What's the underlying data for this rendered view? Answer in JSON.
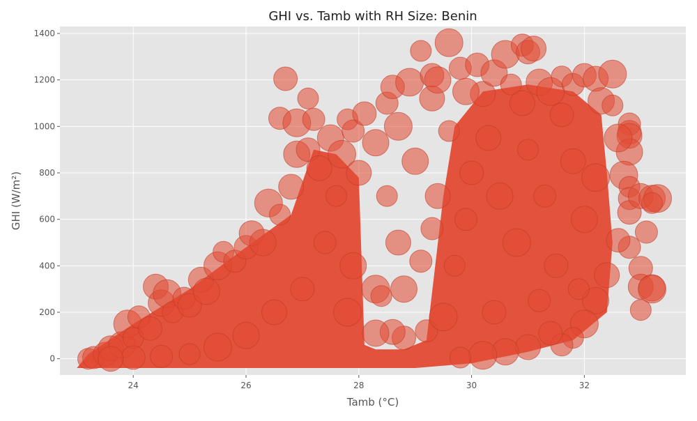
{
  "chart_data": {
    "type": "scatter",
    "title": "GHI vs. Tamb with RH Size: Benin",
    "xlabel": "Tamb (°C)",
    "ylabel": "GHI (W/m²)",
    "xlim": [
      22.7,
      33.8
    ],
    "ylim": [
      -70,
      1430
    ],
    "xticks": [
      "24",
      "26",
      "28",
      "30",
      "32"
    ],
    "yticks": [
      "0",
      "200",
      "400",
      "600",
      "800",
      "1000",
      "1200",
      "1400"
    ],
    "grid": true,
    "colors": {
      "background": "#e5e5e5",
      "grid": "#ffffff",
      "marker": "#e24a33",
      "marker_edge": "#c23a26",
      "text": "#555555",
      "title": "#222222"
    },
    "series": [
      {
        "points": [
          {
            "x": 23.2,
            "y": 0
          },
          {
            "x": 23.3,
            "y": 5
          },
          {
            "x": 23.5,
            "y": 20
          },
          {
            "x": 23.6,
            "y": 45
          },
          {
            "x": 23.8,
            "y": 60
          },
          {
            "x": 23.9,
            "y": 150
          },
          {
            "x": 24.0,
            "y": 90
          },
          {
            "x": 24.1,
            "y": 180
          },
          {
            "x": 24.3,
            "y": 130
          },
          {
            "x": 24.4,
            "y": 310
          },
          {
            "x": 24.5,
            "y": 240
          },
          {
            "x": 24.6,
            "y": 280
          },
          {
            "x": 24.7,
            "y": 200
          },
          {
            "x": 24.9,
            "y": 260
          },
          {
            "x": 25.0,
            "y": 230
          },
          {
            "x": 25.2,
            "y": 340
          },
          {
            "x": 25.3,
            "y": 290
          },
          {
            "x": 25.5,
            "y": 400
          },
          {
            "x": 25.6,
            "y": 460
          },
          {
            "x": 25.8,
            "y": 420
          },
          {
            "x": 26.0,
            "y": 480
          },
          {
            "x": 26.1,
            "y": 540
          },
          {
            "x": 26.3,
            "y": 500
          },
          {
            "x": 26.4,
            "y": 670
          },
          {
            "x": 26.6,
            "y": 620
          },
          {
            "x": 26.6,
            "y": 1035
          },
          {
            "x": 26.7,
            "y": 1205
          },
          {
            "x": 26.8,
            "y": 740
          },
          {
            "x": 26.9,
            "y": 880
          },
          {
            "x": 26.9,
            "y": 1015
          },
          {
            "x": 27.1,
            "y": 1120
          },
          {
            "x": 27.2,
            "y": 1030
          },
          {
            "x": 27.1,
            "y": 900
          },
          {
            "x": 27.3,
            "y": 820
          },
          {
            "x": 27.5,
            "y": 950
          },
          {
            "x": 27.7,
            "y": 880
          },
          {
            "x": 27.8,
            "y": 1030
          },
          {
            "x": 27.9,
            "y": 980
          },
          {
            "x": 28.1,
            "y": 1055
          },
          {
            "x": 28.0,
            "y": 800
          },
          {
            "x": 28.3,
            "y": 930
          },
          {
            "x": 28.3,
            "y": 300
          },
          {
            "x": 28.4,
            "y": 270
          },
          {
            "x": 28.5,
            "y": 1100
          },
          {
            "x": 28.6,
            "y": 1170
          },
          {
            "x": 28.7,
            "y": 500
          },
          {
            "x": 28.8,
            "y": 300
          },
          {
            "x": 28.9,
            "y": 1190
          },
          {
            "x": 29.1,
            "y": 1325
          },
          {
            "x": 29.1,
            "y": 420
          },
          {
            "x": 29.3,
            "y": 1220
          },
          {
            "x": 29.3,
            "y": 1120
          },
          {
            "x": 29.4,
            "y": 1200
          },
          {
            "x": 29.6,
            "y": 1360
          },
          {
            "x": 29.6,
            "y": 980
          },
          {
            "x": 29.8,
            "y": 1250
          },
          {
            "x": 30.1,
            "y": 1265
          },
          {
            "x": 30.2,
            "y": 1140
          },
          {
            "x": 30.4,
            "y": 1230
          },
          {
            "x": 30.6,
            "y": 1310
          },
          {
            "x": 30.7,
            "y": 1180
          },
          {
            "x": 30.9,
            "y": 1350
          },
          {
            "x": 31.0,
            "y": 1320
          },
          {
            "x": 31.1,
            "y": 1335
          },
          {
            "x": 31.2,
            "y": 1190
          },
          {
            "x": 31.4,
            "y": 1150
          },
          {
            "x": 31.6,
            "y": 1215
          },
          {
            "x": 31.8,
            "y": 1180
          },
          {
            "x": 32.0,
            "y": 1220
          },
          {
            "x": 32.2,
            "y": 1205
          },
          {
            "x": 32.3,
            "y": 1110
          },
          {
            "x": 32.5,
            "y": 1225
          },
          {
            "x": 32.5,
            "y": 1090
          },
          {
            "x": 32.8,
            "y": 1010
          },
          {
            "x": 32.8,
            "y": 975
          },
          {
            "x": 32.8,
            "y": 960
          },
          {
            "x": 32.8,
            "y": 890
          },
          {
            "x": 32.7,
            "y": 790
          },
          {
            "x": 32.8,
            "y": 740
          },
          {
            "x": 32.8,
            "y": 690
          },
          {
            "x": 32.8,
            "y": 630
          },
          {
            "x": 33.0,
            "y": 700
          },
          {
            "x": 33.2,
            "y": 690
          },
          {
            "x": 33.3,
            "y": 690
          },
          {
            "x": 33.2,
            "y": 670
          },
          {
            "x": 33.1,
            "y": 545
          },
          {
            "x": 33.0,
            "y": 390
          },
          {
            "x": 33.0,
            "y": 310
          },
          {
            "x": 33.2,
            "y": 305
          },
          {
            "x": 33.2,
            "y": 300
          },
          {
            "x": 33.0,
            "y": 210
          },
          {
            "x": 32.8,
            "y": 480
          },
          {
            "x": 32.6,
            "y": 510
          },
          {
            "x": 32.4,
            "y": 360
          },
          {
            "x": 32.2,
            "y": 250
          },
          {
            "x": 32.0,
            "y": 150
          },
          {
            "x": 31.8,
            "y": 90
          },
          {
            "x": 31.6,
            "y": 60
          },
          {
            "x": 31.4,
            "y": 110
          },
          {
            "x": 31.0,
            "y": 50
          },
          {
            "x": 30.6,
            "y": 30
          },
          {
            "x": 30.2,
            "y": 15
          },
          {
            "x": 29.8,
            "y": 5
          },
          {
            "x": 29.2,
            "y": 120
          },
          {
            "x": 28.8,
            "y": 90
          },
          {
            "x": 28.6,
            "y": 115
          },
          {
            "x": 28.3,
            "y": 110
          },
          {
            "x": 29.5,
            "y": 180
          },
          {
            "x": 29.7,
            "y": 400
          },
          {
            "x": 29.9,
            "y": 600
          },
          {
            "x": 30.0,
            "y": 800
          },
          {
            "x": 30.3,
            "y": 950
          },
          {
            "x": 30.5,
            "y": 700
          },
          {
            "x": 30.8,
            "y": 500
          },
          {
            "x": 31.0,
            "y": 900
          },
          {
            "x": 31.3,
            "y": 700
          },
          {
            "x": 31.5,
            "y": 400
          },
          {
            "x": 31.8,
            "y": 850
          },
          {
            "x": 32.0,
            "y": 600
          },
          {
            "x": 32.2,
            "y": 780
          },
          {
            "x": 31.9,
            "y": 300
          },
          {
            "x": 31.2,
            "y": 250
          },
          {
            "x": 30.4,
            "y": 200
          },
          {
            "x": 29.4,
            "y": 700
          },
          {
            "x": 29.0,
            "y": 850
          },
          {
            "x": 28.7,
            "y": 1000
          },
          {
            "x": 27.6,
            "y": 700
          },
          {
            "x": 27.4,
            "y": 500
          },
          {
            "x": 27.0,
            "y": 300
          },
          {
            "x": 26.5,
            "y": 200
          },
          {
            "x": 26.0,
            "y": 100
          },
          {
            "x": 25.5,
            "y": 50
          },
          {
            "x": 25.0,
            "y": 20
          },
          {
            "x": 24.5,
            "y": 10
          },
          {
            "x": 24.0,
            "y": 5
          },
          {
            "x": 23.6,
            "y": 0
          },
          {
            "x": 27.9,
            "y": 400
          },
          {
            "x": 27.8,
            "y": 200
          },
          {
            "x": 28.5,
            "y": 700
          },
          {
            "x": 29.3,
            "y": 560
          },
          {
            "x": 31.6,
            "y": 1050
          },
          {
            "x": 30.9,
            "y": 1100
          },
          {
            "x": 29.9,
            "y": 1150
          },
          {
            "x": 32.6,
            "y": 950
          }
        ]
      }
    ]
  }
}
